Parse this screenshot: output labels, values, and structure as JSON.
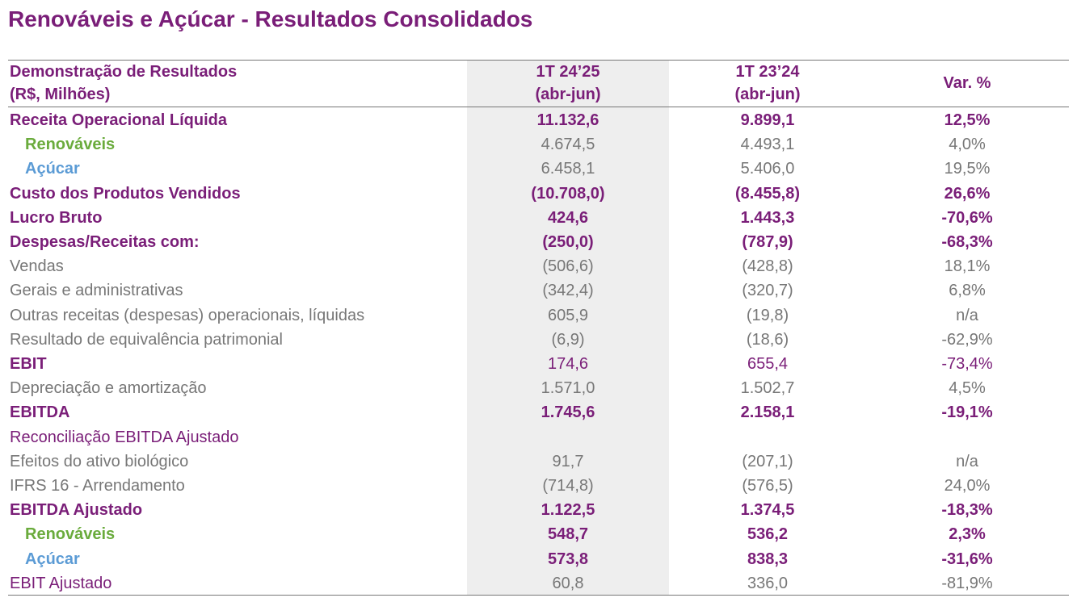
{
  "header": {
    "title": "Renováveis e Açúcar - Resultados Consolidados"
  },
  "table": {
    "columns": [
      [
        "Demonstração de Resultados",
        "(R$, Milhões)"
      ],
      [
        "1T 24’25",
        "(abr-jun)"
      ],
      [
        "1T 23’24",
        "(abr-jun)"
      ],
      [
        "Var. %"
      ]
    ],
    "rows": [
      [
        "Receita Operacional Líquida",
        "11.132,6",
        "9.899,1",
        "12,5%"
      ],
      [
        "Renováveis",
        "4.674,5",
        "4.493,1",
        "4,0%"
      ],
      [
        "Açúcar",
        "6.458,1",
        "5.406,0",
        "19,5%"
      ],
      [
        "Custo dos Produtos Vendidos",
        "(10.708,0)",
        "(8.455,8)",
        "26,6%"
      ],
      [
        "Lucro Bruto",
        "424,6",
        "1.443,3",
        "-70,6%"
      ],
      [
        "Despesas/Receitas com:",
        "(250,0)",
        "(787,9)",
        "-68,3%"
      ],
      [
        "Vendas",
        "(506,6)",
        "(428,8)",
        "18,1%"
      ],
      [
        "Gerais e administrativas",
        "(342,4)",
        "(320,7)",
        "6,8%"
      ],
      [
        "Outras receitas (despesas) operacionais, líquidas",
        "605,9",
        "(19,8)",
        "n/a"
      ],
      [
        "Resultado de equivalência patrimonial",
        "(6,9)",
        "(18,6)",
        "-62,9%"
      ],
      [
        "EBIT",
        "174,6",
        "655,4",
        "-73,4%"
      ],
      [
        "Depreciação e amortização",
        "1.571,0",
        "1.502,7",
        "4,5%"
      ],
      [
        "EBITDA",
        "1.745,6",
        "2.158,1",
        "-19,1%"
      ],
      [
        "Reconciliação EBITDA Ajustado"
      ],
      [
        "Efeitos do ativo biológico",
        "91,7",
        "(207,1)",
        "n/a"
      ],
      [
        "IFRS 16 - Arrendamento",
        "(714,8)",
        "(576,5)",
        "24,0%"
      ],
      [
        "EBITDA Ajustado",
        "1.122,5",
        "1.374,5",
        "-18,3%"
      ],
      [
        "Renováveis",
        "548,7",
        "536,2",
        "2,3%"
      ],
      [
        "Açúcar",
        "573,8",
        "838,3",
        "-31,6%"
      ],
      [
        "EBIT Ajustado",
        "60,8",
        "336,0",
        "-81,9%"
      ]
    ]
  }
}
